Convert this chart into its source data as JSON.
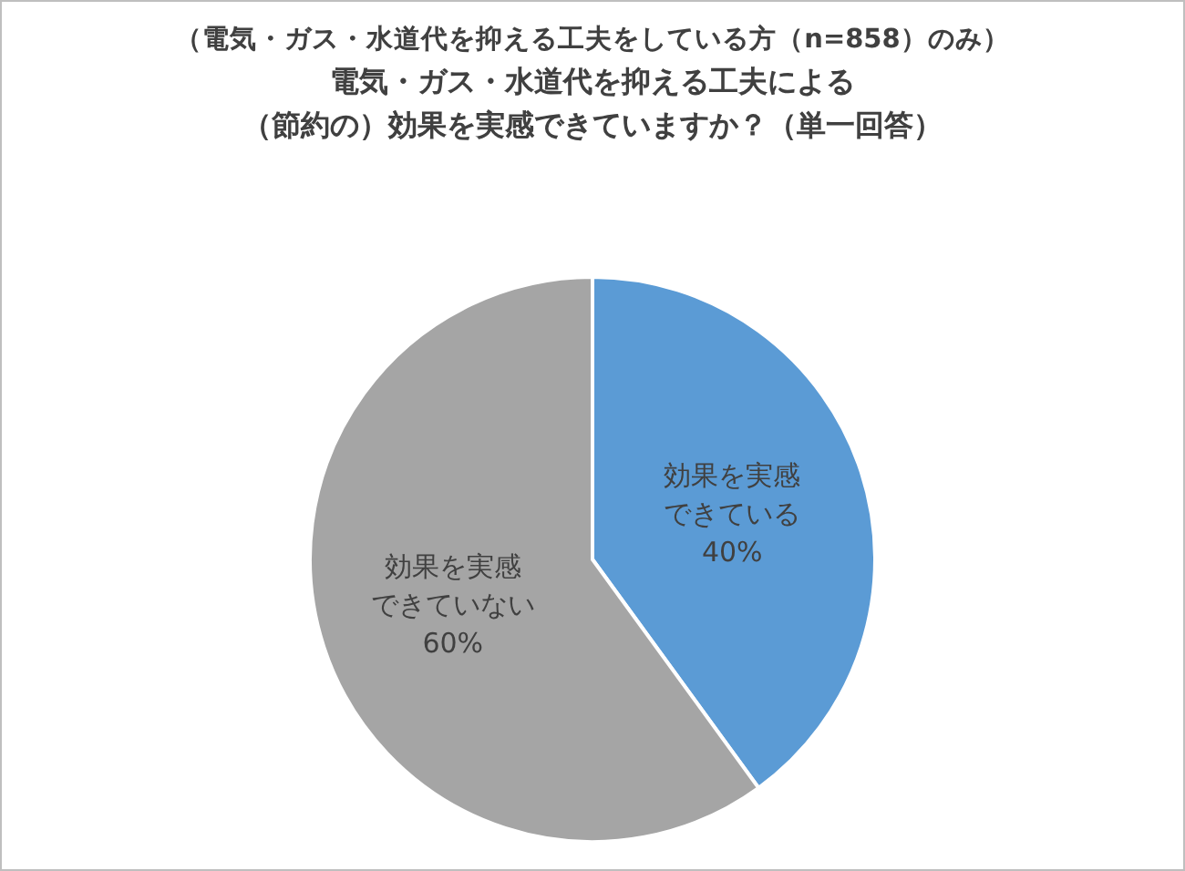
{
  "chart_data": {
    "type": "pie",
    "subtitle": "（電気・ガス・水道代を抑える工夫をしている方（n=858）のみ）",
    "title": "電気・ガス・水道代を抑える工夫による（節約の）効果を実感できていますか？（単一回答）",
    "categories": [
      "効果を実感できている",
      "効果を実感できていない"
    ],
    "values": [
      40,
      60
    ],
    "colors": [
      "#5b9bd5",
      "#a5a5a5"
    ],
    "value_labels": [
      "40%",
      "60%"
    ]
  }
}
